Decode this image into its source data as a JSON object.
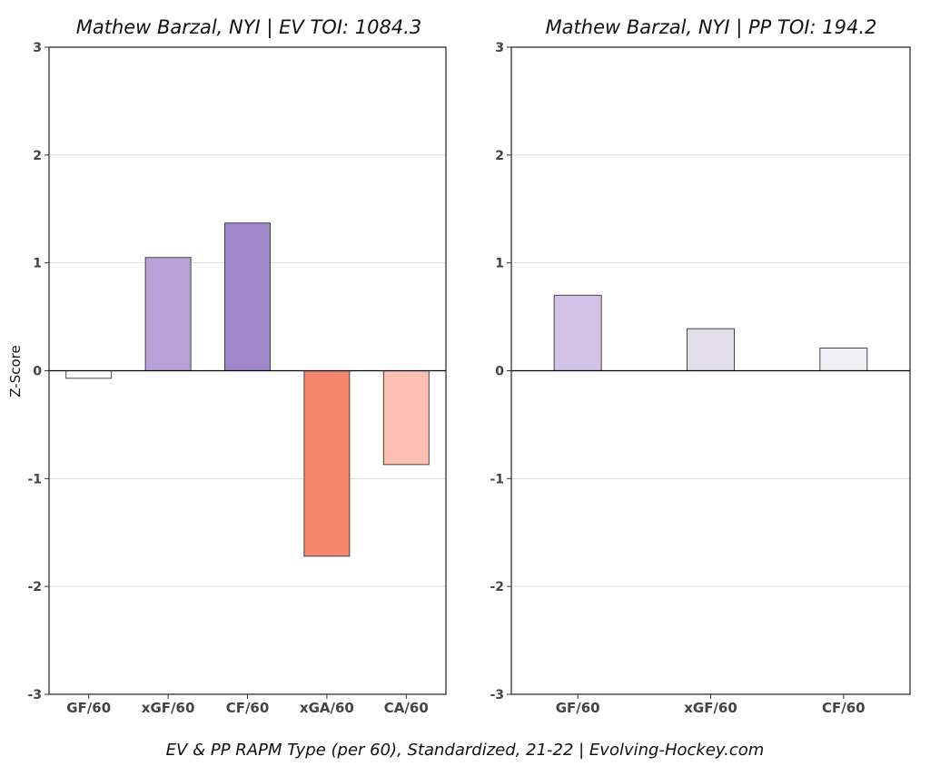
{
  "chart_data": [
    {
      "type": "bar",
      "title": "Mathew Barzal, NYI  |  EV TOI: 1084.3",
      "ylabel": "Z-Score",
      "ylim": [
        -3,
        3
      ],
      "yticks": [
        -3,
        -2,
        -1,
        0,
        1,
        2,
        3
      ],
      "grid": true,
      "categories": [
        "GF/60",
        "xGF/60",
        "CF/60",
        "xGA/60",
        "CA/60"
      ],
      "values": [
        -0.07,
        1.05,
        1.37,
        -1.72,
        -0.87
      ],
      "colors": [
        "#ffffff",
        "#b8a3d9",
        "#a087c9",
        "#f4866c",
        "#fdbfb0"
      ]
    },
    {
      "type": "bar",
      "title": "Mathew Barzal, NYI  |  PP TOI: 194.2",
      "ylim": [
        -3,
        3
      ],
      "yticks": [
        -3,
        -2,
        -1,
        0,
        1,
        2,
        3
      ],
      "grid": true,
      "categories": [
        "GF/60",
        "xGF/60",
        "CF/60"
      ],
      "values": [
        0.7,
        0.39,
        0.21
      ],
      "colors": [
        "#d1c2e6",
        "#e2dfeb",
        "#efeef2"
      ]
    }
  ],
  "footer": "EV & PP RAPM Type (per 60), Standardized, 21-22    |    Evolving-Hockey.com"
}
